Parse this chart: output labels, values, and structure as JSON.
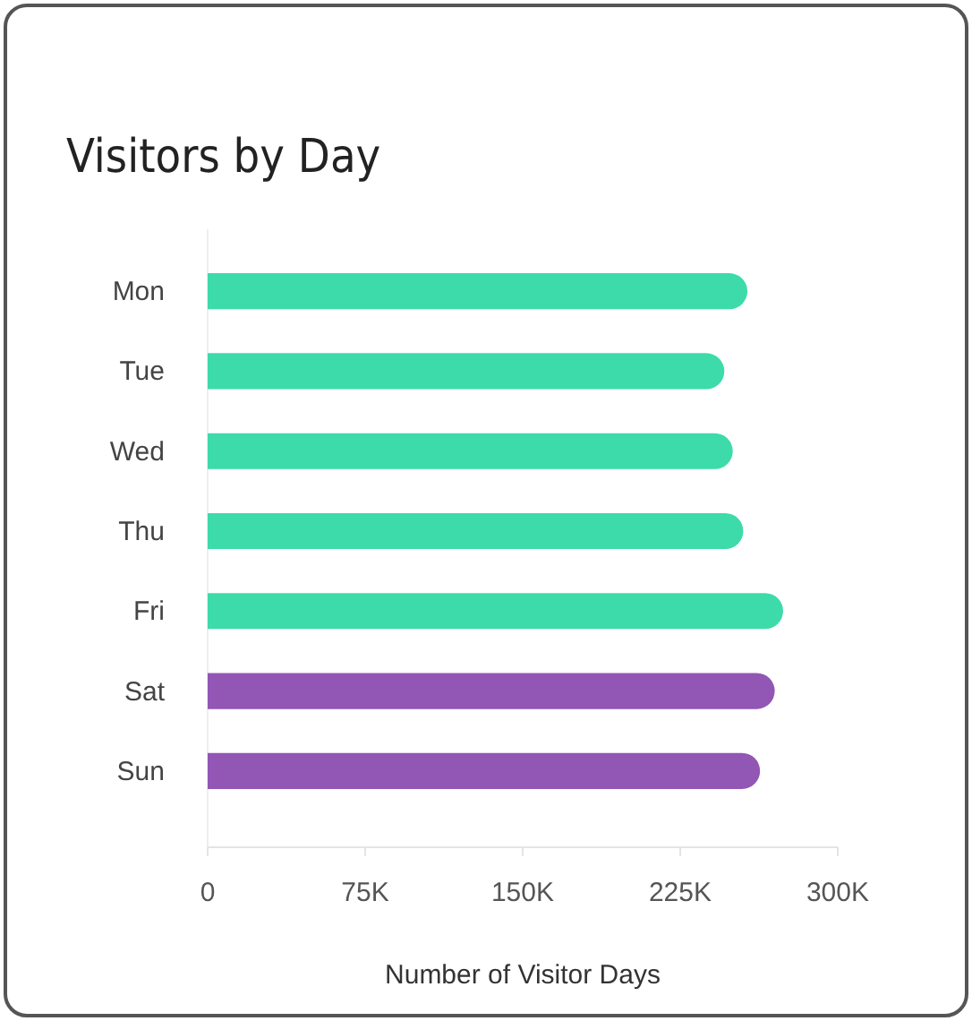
{
  "chart_data": {
    "type": "bar",
    "orientation": "horizontal",
    "title": "Visitors by Day",
    "xlabel": "Number of Visitor Days",
    "categories": [
      "Mon",
      "Tue",
      "Wed",
      "Thu",
      "Fri",
      "Sat",
      "Sun"
    ],
    "values": [
      257000,
      246000,
      250000,
      255000,
      274000,
      270000,
      263000
    ],
    "colors": [
      "#3ddba9",
      "#3ddba9",
      "#3ddba9",
      "#3ddba9",
      "#3ddba9",
      "#9256b5",
      "#9256b5"
    ],
    "xlim": [
      0,
      300000
    ],
    "xticks": [
      0,
      {
        "value": 75000,
        "label": "75K"
      },
      {
        "value": 150000,
        "label": "150K"
      },
      {
        "value": 225000,
        "label": "225K"
      },
      {
        "value": 300000,
        "label": "300K"
      }
    ],
    "grid": false
  }
}
